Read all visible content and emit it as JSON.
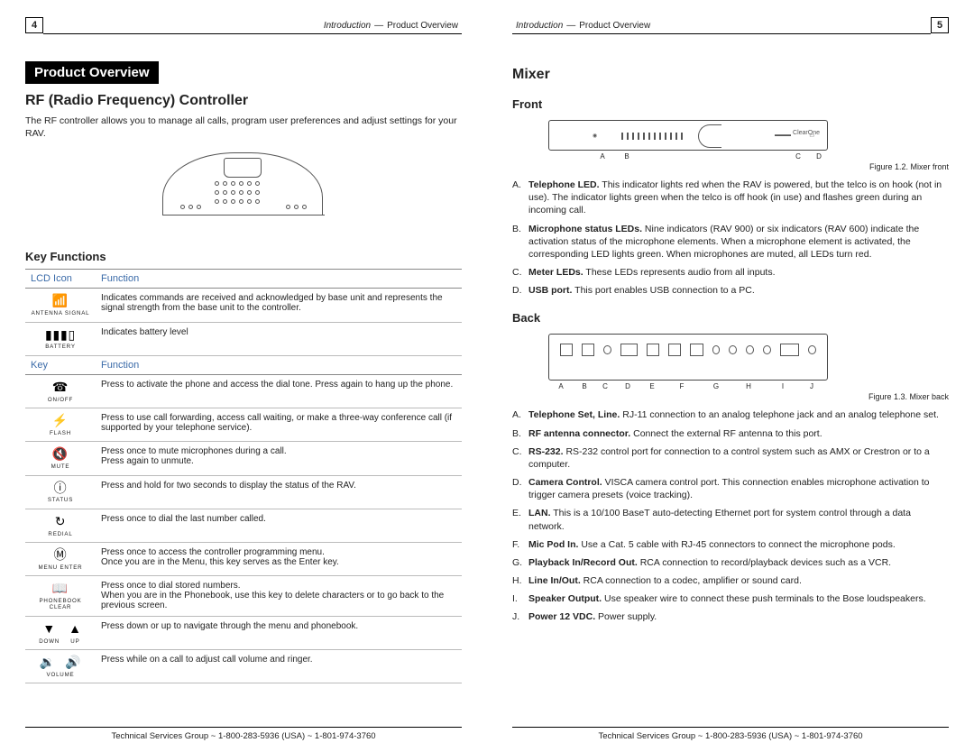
{
  "left": {
    "page_number": "4",
    "breadcrumb_main": "Introduction",
    "breadcrumb_sep": "—",
    "breadcrumb_sub": "Product Overview",
    "section_bar": "Product Overview",
    "h2": "RF (Radio Frequency) Controller",
    "intro": "The RF controller allows you to manage all calls, program user preferences and adjust settings for your RAV.",
    "h3_key_functions": "Key Functions",
    "table1_hdr1": "LCD Icon",
    "table1_hdr2": "Function",
    "table1": [
      {
        "icon": "📶",
        "label": "ANTENNA SIGNAL",
        "desc": "Indicates commands are received and acknowledged by base unit and represents the signal strength from the base unit to the controller."
      },
      {
        "icon": "▮▮▮▯",
        "label": "BATTERY",
        "desc": "Indicates battery level"
      }
    ],
    "table2_hdr1": "Key",
    "table2_hdr2": "Function",
    "table2": [
      {
        "icon": "☎",
        "label": "ON/OFF",
        "desc": "Press to activate the phone and access the dial tone. Press again to hang up the phone."
      },
      {
        "icon": "⚡",
        "label": "FLASH",
        "desc": "Press to use call forwarding, access call waiting, or make a three-way conference call (if supported by your telephone service)."
      },
      {
        "icon": "🔇",
        "label": "MUTE",
        "desc": "Press once to mute microphones during a call.\nPress again to unmute."
      },
      {
        "icon": "ⓘ",
        "label": "STATUS",
        "desc": "Press and hold for two seconds to display the status of the RAV."
      },
      {
        "icon": "↻",
        "label": "REDIAL",
        "desc": "Press once to dial the last number called."
      },
      {
        "icon": "Ⓜ",
        "label": "MENU ENTER",
        "desc": "Press once to access the controller programming menu.\nOnce you are in the Menu, this key serves as the Enter key."
      },
      {
        "icon": "📖",
        "label": "PHONEBOOK CLEAR",
        "desc": "Press once to dial stored numbers.\nWhen you are in the Phonebook, use this key to delete characters or to go back to the previous screen."
      }
    ],
    "row_down_up": {
      "icon1": "▼",
      "label1": "DOWN",
      "icon2": "▲",
      "label2": "UP",
      "desc": "Press down or up to navigate through the menu and phonebook."
    },
    "row_volume": {
      "icon1": "🔉",
      "label1": "",
      "icon2": "🔊",
      "label2": "VOLUME",
      "desc": "Press while on a call to adjust call volume and ringer."
    },
    "footer": "Technical Services Group ~ 1-800-283-5936 (USA) ~ 1-801-974-3760"
  },
  "right": {
    "page_number": "5",
    "breadcrumb_main": "Introduction",
    "breadcrumb_sep": "—",
    "breadcrumb_sub": "Product Overview",
    "h2": "Mixer",
    "h3_front": "Front",
    "fig_front_caption": "Figure 1.2. Mixer front",
    "fig_front_labels": [
      "A",
      "B",
      "C",
      "D"
    ],
    "front_items": [
      {
        "letter": "A.",
        "bold": "Telephone LED.",
        "text": " This indicator lights red when the RAV is powered, but the telco is on hook (not in use). The indicator lights green when the telco is off hook (in use) and flashes green during an incoming call."
      },
      {
        "letter": "B.",
        "bold": "Microphone status LEDs.",
        "text": " Nine indicators (RAV 900) or six indicators (RAV 600) indicate the activation status of the microphone elements. When a microphone element is activated, the corresponding LED lights green. When microphones are muted, all LEDs turn red."
      },
      {
        "letter": "C.",
        "bold": "Meter LEDs.",
        "text": " These LEDs represents audio from all inputs."
      },
      {
        "letter": "D.",
        "bold": "USB port.",
        "text": " This port enables USB connection to a PC."
      }
    ],
    "h3_back": "Back",
    "fig_back_caption": "Figure 1.3. Mixer back",
    "fig_back_labels": [
      "A",
      "B",
      "C",
      "D",
      "E",
      "F",
      "G",
      "H",
      "I",
      "J"
    ],
    "back_items": [
      {
        "letter": "A.",
        "bold": "Telephone Set, Line.",
        "text": " RJ-11 connection to an analog telephone jack and an analog telephone set."
      },
      {
        "letter": "B.",
        "bold": "RF antenna connector.",
        "text": " Connect the external RF antenna to this port."
      },
      {
        "letter": "C.",
        "bold": "RS-232.",
        "text": " RS-232 control port for connection to a control system such as AMX or Crestron or to a computer."
      },
      {
        "letter": "D.",
        "bold": "Camera Control.",
        "text": " VISCA camera control port. This connection enables microphone activation to trigger camera presets (voice tracking)."
      },
      {
        "letter": "E.",
        "bold": "LAN.",
        "text": " This is a 10/100 BaseT auto-detecting Ethernet port for system control through a data network."
      },
      {
        "letter": "F.",
        "bold": "Mic Pod In.",
        "text": " Use a Cat. 5 cable with RJ-45 connectors to connect the microphone pods."
      },
      {
        "letter": "G.",
        "bold": "Playback In/Record Out.",
        "text": " RCA connection to record/playback devices such as a VCR."
      },
      {
        "letter": "H.",
        "bold": "Line In/Out.",
        "text": " RCA connection to a codec, amplifier or sound card."
      },
      {
        "letter": "I.",
        "bold": "Speaker Output.",
        "text": " Use speaker wire to connect these push terminals to the Bose loudspeakers."
      },
      {
        "letter": "J.",
        "bold": "Power 12 VDC.",
        "text": " Power supply."
      }
    ],
    "footer": "Technical Services Group ~ 1-800-283-5936 (USA) ~ 1-801-974-3760"
  }
}
